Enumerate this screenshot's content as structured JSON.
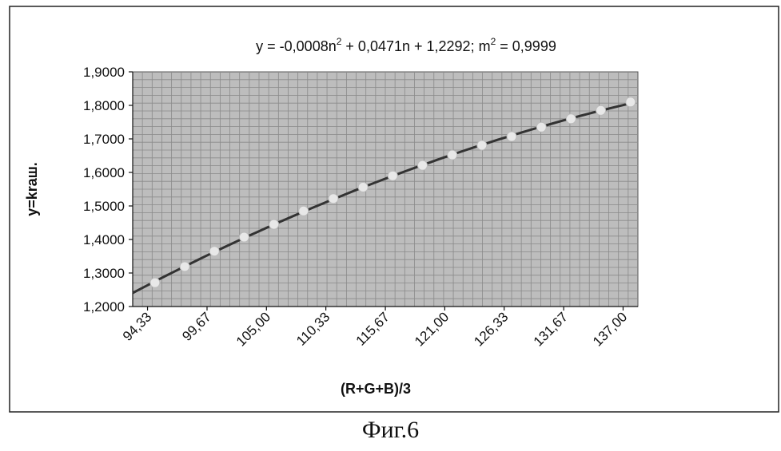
{
  "chart_data": {
    "type": "scatter",
    "title": "",
    "equation": {
      "prefix": "y = -0,0008n",
      "sup1": "2",
      "middle": " + 0,0471n + 1,2292;  m",
      "sup2": "2",
      "suffix": " = 0,9999"
    },
    "xlabel": "(R+G+B)/3",
    "ylabel": "y=kraш.",
    "x_ticks": [
      "94,33",
      "99,67",
      "105,00",
      "110,33",
      "115,67",
      "121,00",
      "126,33",
      "131,67",
      "137,00"
    ],
    "y_ticks": [
      "1,2000",
      "1,3000",
      "1,4000",
      "1,5000",
      "1,6000",
      "1,7000",
      "1,8000",
      "1,9000"
    ],
    "xlim": [
      93.0,
      138.33
    ],
    "ylim": [
      1.2,
      1.9
    ],
    "series": [
      {
        "x": [
          95.0,
          97.67,
          100.33,
          103.0,
          105.67,
          108.33,
          111.0,
          113.67,
          116.33,
          119.0,
          121.67,
          124.33,
          127.0,
          129.67,
          132.33,
          135.0,
          137.67
        ],
        "values": [
          1.271,
          1.319,
          1.365,
          1.407,
          1.445,
          1.485,
          1.522,
          1.556,
          1.59,
          1.621,
          1.652,
          1.681,
          1.707,
          1.735,
          1.76,
          1.785,
          1.81
        ]
      }
    ],
    "trendline": {
      "type": "polynomial",
      "x_range": [
        93.0,
        137.67
      ]
    },
    "grid": true,
    "legend": "none"
  },
  "caption": "Фиг.6"
}
